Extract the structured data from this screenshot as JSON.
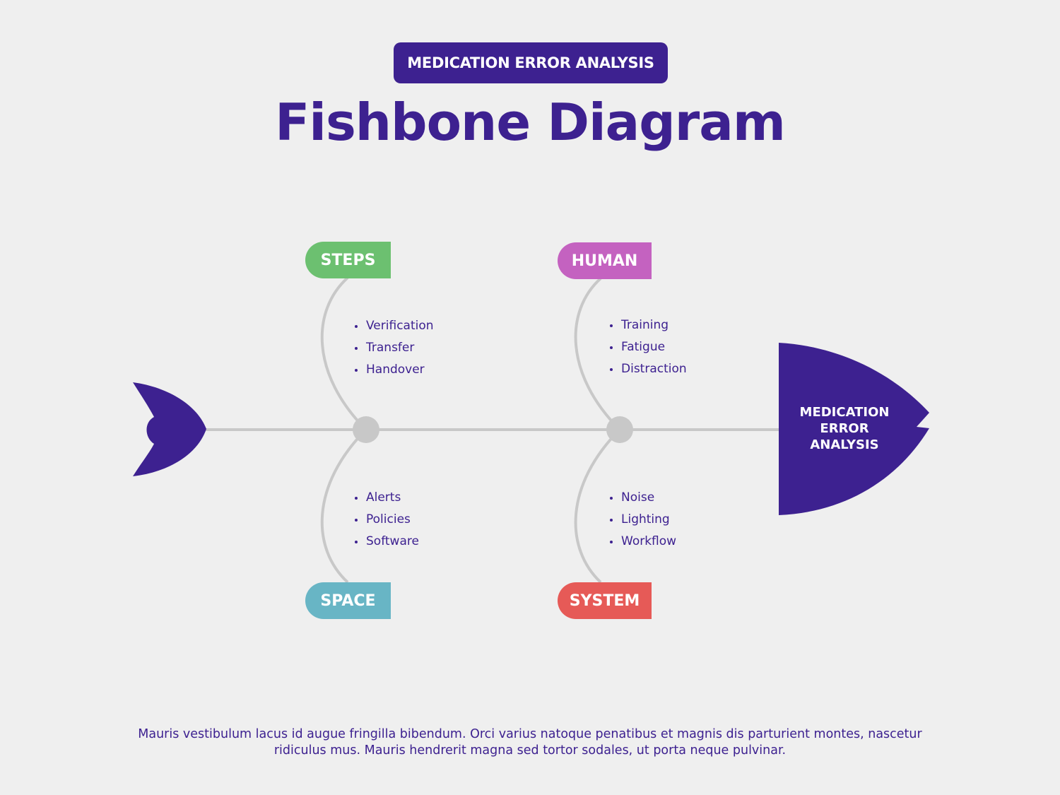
{
  "header": {
    "badge": "MEDICATION ERROR ANALYSIS",
    "title": "Fishbone Diagram"
  },
  "fish_head": {
    "lines": [
      "MEDICATION",
      "ERROR",
      "ANALYSIS"
    ]
  },
  "categories": [
    {
      "label": "STEPS",
      "color": "#6cc070",
      "items": [
        "Verification",
        "Transfer",
        "Handover"
      ]
    },
    {
      "label": "HUMAN",
      "color": "#c462c0",
      "items": [
        "Training",
        "Fatigue",
        "Distraction"
      ]
    },
    {
      "label": "SPACE",
      "color": "#68b5c5",
      "items": [
        "Alerts",
        "Policies",
        "Software"
      ]
    },
    {
      "label": "SYSTEM",
      "color": "#e65a57",
      "items": [
        "Noise",
        "Lighting",
        "Workflow"
      ]
    }
  ],
  "colors": {
    "primary": "#3d2190",
    "spine": "#c8c8c8",
    "background": "#efefef"
  },
  "footer": {
    "text": "Mauris vestibulum lacus id augue fringilla bibendum. Orci varius natoque penatibus et magnis dis parturient montes, nascetur ridiculus mus. Mauris hendrerit magna sed tortor sodales, ut porta neque pulvinar."
  }
}
